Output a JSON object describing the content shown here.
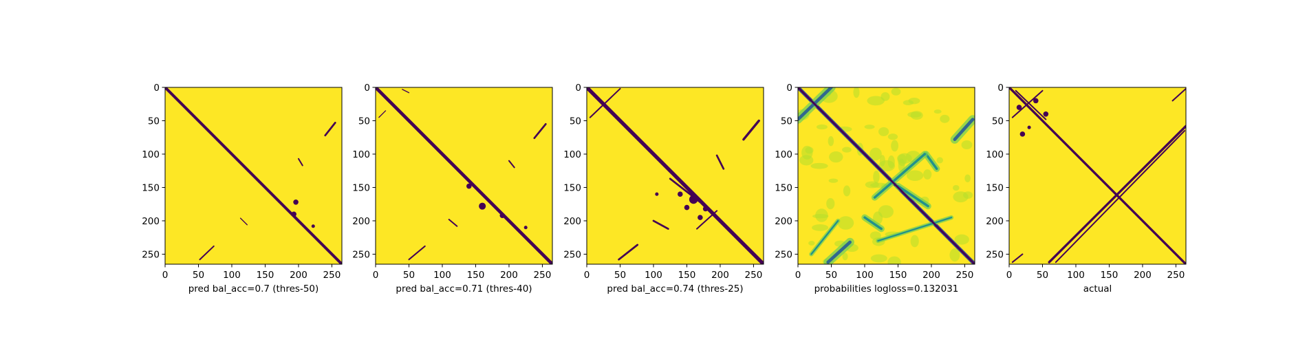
{
  "chart_data": [
    {
      "type": "heatmap",
      "xlabel": "pred bal_acc=0.7 (thres-50)",
      "colormap": "binary",
      "xlim": [
        0,
        265
      ],
      "ylim": [
        265,
        0
      ],
      "xticks": [
        0,
        50,
        100,
        150,
        200,
        250
      ],
      "yticks": [
        0,
        50,
        100,
        150,
        200,
        250
      ],
      "background_color": "#fde725",
      "mark_color": "#440154",
      "features": [
        {
          "kind": "diagonal",
          "from": [
            0,
            0
          ],
          "to": [
            265,
            265
          ],
          "width": 3
        },
        {
          "kind": "segment",
          "from": [
            240,
            72
          ],
          "to": [
            255,
            53
          ],
          "width": 2
        },
        {
          "kind": "segment",
          "from": [
            200,
            107
          ],
          "to": [
            206,
            117
          ],
          "width": 1.5
        },
        {
          "kind": "segment",
          "from": [
            52,
            258
          ],
          "to": [
            73,
            238
          ],
          "width": 1.5
        },
        {
          "kind": "segment",
          "from": [
            113,
            196
          ],
          "to": [
            123,
            206
          ],
          "width": 1
        },
        {
          "kind": "blob",
          "at": [
            193,
            190
          ],
          "size": 3
        },
        {
          "kind": "blob",
          "at": [
            196,
            172
          ],
          "size": 3
        },
        {
          "kind": "blob",
          "at": [
            222,
            208
          ],
          "size": 2
        }
      ]
    },
    {
      "type": "heatmap",
      "xlabel": "pred bal_acc=0.71 (thres-40)",
      "colormap": "binary",
      "xlim": [
        0,
        265
      ],
      "ylim": [
        265,
        0
      ],
      "xticks": [
        0,
        50,
        100,
        150,
        200,
        250
      ],
      "yticks": [
        0,
        50,
        100,
        150,
        200,
        250
      ],
      "background_color": "#fde725",
      "mark_color": "#440154",
      "features": [
        {
          "kind": "diagonal",
          "from": [
            0,
            0
          ],
          "to": [
            265,
            265
          ],
          "width": 3.5
        },
        {
          "kind": "segment",
          "from": [
            238,
            76
          ],
          "to": [
            255,
            55
          ],
          "width": 2
        },
        {
          "kind": "segment",
          "from": [
            200,
            110
          ],
          "to": [
            208,
            120
          ],
          "width": 1.5
        },
        {
          "kind": "segment",
          "from": [
            50,
            258
          ],
          "to": [
            74,
            238
          ],
          "width": 1.5
        },
        {
          "kind": "segment",
          "from": [
            110,
            198
          ],
          "to": [
            122,
            208
          ],
          "width": 1.5
        },
        {
          "kind": "segment",
          "from": [
            5,
            45
          ],
          "to": [
            15,
            35
          ],
          "width": 1
        },
        {
          "kind": "segment",
          "from": [
            40,
            3
          ],
          "to": [
            50,
            8
          ],
          "width": 1
        },
        {
          "kind": "blob",
          "at": [
            160,
            178
          ],
          "size": 4
        },
        {
          "kind": "blob",
          "at": [
            190,
            192
          ],
          "size": 3
        },
        {
          "kind": "blob",
          "at": [
            225,
            210
          ],
          "size": 2
        },
        {
          "kind": "blob",
          "at": [
            140,
            148
          ],
          "size": 3
        }
      ]
    },
    {
      "type": "heatmap",
      "xlabel": "pred bal_acc=0.74 (thres-25)",
      "colormap": "binary",
      "xlim": [
        0,
        265
      ],
      "ylim": [
        265,
        0
      ],
      "xticks": [
        0,
        50,
        100,
        150,
        200,
        250
      ],
      "yticks": [
        0,
        50,
        100,
        150,
        200,
        250
      ],
      "background_color": "#fde725",
      "mark_color": "#440154",
      "features": [
        {
          "kind": "diagonal",
          "from": [
            0,
            0
          ],
          "to": [
            265,
            265
          ],
          "width": 4
        },
        {
          "kind": "segment",
          "from": [
            235,
            78
          ],
          "to": [
            258,
            50
          ],
          "width": 2.5
        },
        {
          "kind": "segment",
          "from": [
            195,
            102
          ],
          "to": [
            205,
            122
          ],
          "width": 2
        },
        {
          "kind": "segment",
          "from": [
            48,
            258
          ],
          "to": [
            76,
            236
          ],
          "width": 2
        },
        {
          "kind": "segment",
          "from": [
            100,
            200
          ],
          "to": [
            122,
            212
          ],
          "width": 2
        },
        {
          "kind": "segment",
          "from": [
            5,
            45
          ],
          "to": [
            50,
            2
          ],
          "width": 1.5
        },
        {
          "kind": "segment",
          "from": [
            125,
            137
          ],
          "to": [
            170,
            172
          ],
          "width": 2
        },
        {
          "kind": "segment",
          "from": [
            165,
            212
          ],
          "to": [
            195,
            185
          ],
          "width": 1.5
        },
        {
          "kind": "blob",
          "at": [
            160,
            168
          ],
          "size": 5
        },
        {
          "kind": "blob",
          "at": [
            140,
            160
          ],
          "size": 3
        },
        {
          "kind": "blob",
          "at": [
            150,
            180
          ],
          "size": 3
        },
        {
          "kind": "blob",
          "at": [
            178,
            182
          ],
          "size": 3
        },
        {
          "kind": "blob",
          "at": [
            170,
            195
          ],
          "size": 3
        },
        {
          "kind": "blob",
          "at": [
            105,
            160
          ],
          "size": 2
        }
      ]
    },
    {
      "type": "heatmap",
      "xlabel": "probabilities logloss=0.132031",
      "colormap": "viridis",
      "xlim": [
        0,
        265
      ],
      "ylim": [
        265,
        0
      ],
      "xticks": [
        0,
        50,
        100,
        150,
        200,
        250
      ],
      "yticks": [
        0,
        50,
        100,
        150,
        200,
        250
      ],
      "background_color": "#fde725",
      "mark_color": "#3b528b",
      "features": [
        {
          "kind": "diagonal",
          "from": [
            0,
            0
          ],
          "to": [
            265,
            265
          ],
          "width": 4
        },
        {
          "kind": "soft",
          "from": [
            0,
            48
          ],
          "to": [
            50,
            0
          ],
          "width": 4
        },
        {
          "kind": "soft",
          "from": [
            235,
            78
          ],
          "to": [
            262,
            48
          ],
          "width": 4
        },
        {
          "kind": "soft",
          "from": [
            45,
            262
          ],
          "to": [
            78,
            232
          ],
          "width": 4
        },
        {
          "kind": "soft",
          "from": [
            192,
            100
          ],
          "to": [
            208,
            122
          ],
          "width": 3
        },
        {
          "kind": "soft",
          "from": [
            115,
            165
          ],
          "to": [
            190,
            100
          ],
          "width": 3
        },
        {
          "kind": "soft",
          "from": [
            100,
            195
          ],
          "to": [
            125,
            212
          ],
          "width": 3
        },
        {
          "kind": "soft",
          "from": [
            120,
            230
          ],
          "to": [
            230,
            195
          ],
          "width": 2
        },
        {
          "kind": "soft",
          "from": [
            150,
            148
          ],
          "to": [
            195,
            178
          ],
          "width": 3
        },
        {
          "kind": "soft",
          "from": [
            20,
            250
          ],
          "to": [
            60,
            200
          ],
          "width": 2
        }
      ]
    },
    {
      "type": "heatmap",
      "xlabel": "actual",
      "colormap": "binary",
      "xlim": [
        0,
        265
      ],
      "ylim": [
        265,
        0
      ],
      "xticks": [
        0,
        50,
        100,
        150,
        200,
        250
      ],
      "yticks": [
        0,
        50,
        100,
        150,
        200,
        250
      ],
      "background_color": "#fde725",
      "mark_color": "#440154",
      "features": [
        {
          "kind": "diagonal",
          "from": [
            0,
            0
          ],
          "to": [
            265,
            265
          ],
          "width": 2.5
        },
        {
          "kind": "segment",
          "from": [
            60,
            262
          ],
          "to": [
            265,
            58
          ],
          "width": 2.5
        },
        {
          "kind": "segment",
          "from": [
            70,
            262
          ],
          "to": [
            263,
            65
          ],
          "width": 1.5
        },
        {
          "kind": "segment",
          "from": [
            5,
            262
          ],
          "to": [
            20,
            250
          ],
          "width": 1.5
        },
        {
          "kind": "segment",
          "from": [
            5,
            45
          ],
          "to": [
            50,
            5
          ],
          "width": 1.5
        },
        {
          "kind": "segment",
          "from": [
            10,
            5
          ],
          "to": [
            55,
            48
          ],
          "width": 1.5
        },
        {
          "kind": "segment",
          "from": [
            245,
            20
          ],
          "to": [
            265,
            2
          ],
          "width": 1.5
        },
        {
          "kind": "blob",
          "at": [
            20,
            70
          ],
          "size": 3
        },
        {
          "kind": "blob",
          "at": [
            15,
            30
          ],
          "size": 3
        },
        {
          "kind": "blob",
          "at": [
            40,
            20
          ],
          "size": 3
        },
        {
          "kind": "blob",
          "at": [
            55,
            40
          ],
          "size": 3
        },
        {
          "kind": "blob",
          "at": [
            30,
            60
          ],
          "size": 2
        }
      ]
    }
  ]
}
